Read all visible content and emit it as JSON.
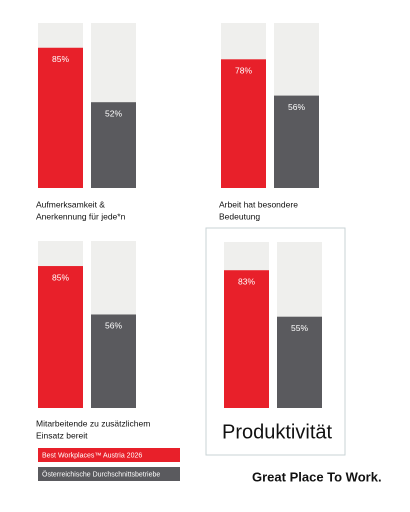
{
  "chart_data": [
    {
      "type": "bar",
      "title": [
        "Aufmerksamkeit &",
        "Anerkennung für jede*n"
      ],
      "values": [
        85,
        52
      ],
      "value_labels": [
        "85%",
        "52%"
      ],
      "ylim": [
        0,
        100
      ]
    },
    {
      "type": "bar",
      "title": [
        "Arbeit hat besondere",
        "Bedeutung"
      ],
      "values": [
        78,
        56
      ],
      "value_labels": [
        "78%",
        "56%"
      ],
      "ylim": [
        0,
        100
      ]
    },
    {
      "type": "bar",
      "title": [
        "Mitarbeitende zu zusätzlichem",
        "Einsatz bereit"
      ],
      "values": [
        85,
        56
      ],
      "value_labels": [
        "85%",
        "56%"
      ],
      "ylim": [
        0,
        100
      ]
    },
    {
      "type": "bar",
      "title": [
        "Produktivität"
      ],
      "values": [
        83,
        55
      ],
      "value_labels": [
        "83%",
        "55%"
      ],
      "ylim": [
        0,
        100
      ]
    }
  ],
  "legend": [
    {
      "name": "Best Workplaces™ Austria 2026",
      "color": "#e8202a"
    },
    {
      "name": "Österreichische Durchschnittsbetriebe",
      "color": "#5a5a5e"
    }
  ],
  "logo": "Great Place To Work."
}
